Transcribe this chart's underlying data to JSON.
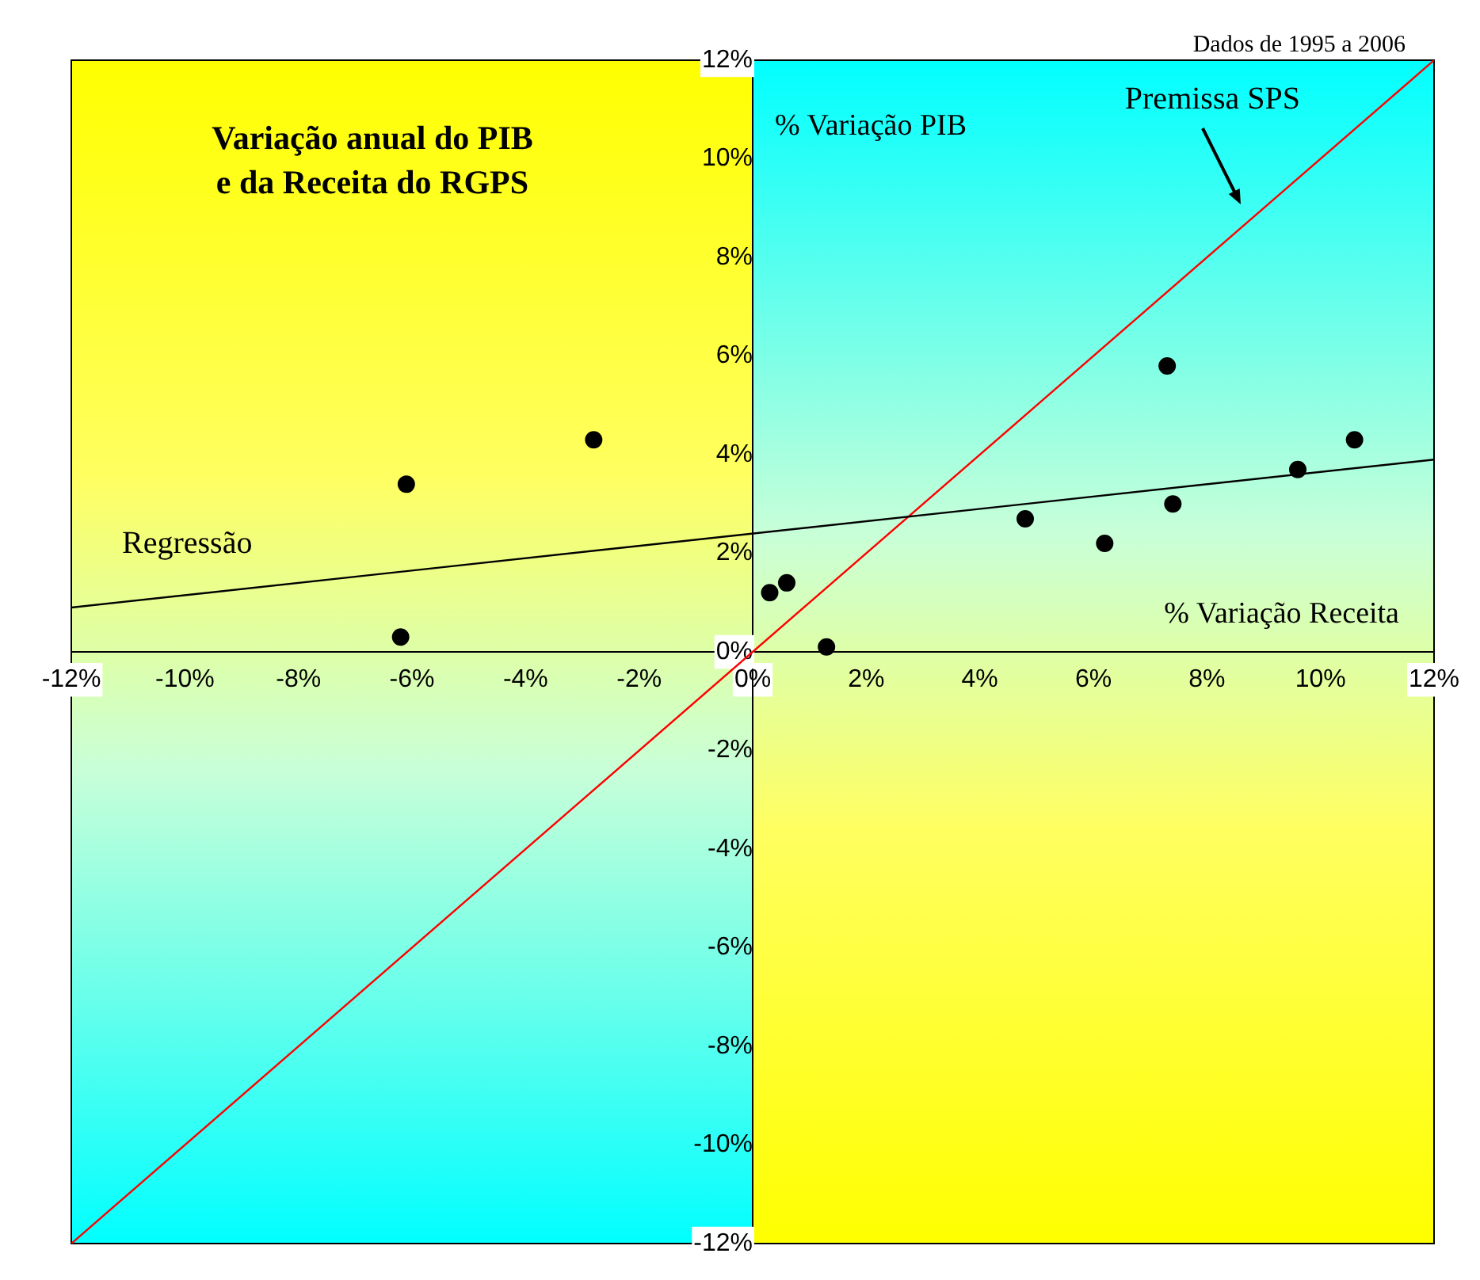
{
  "chart_data": {
    "type": "scatter",
    "title": "Variação anual do PIB\ne da Receita do RGPS",
    "xlabel": "% Variação Receita",
    "ylabel": "% Variação PIB",
    "annotations": [
      "Dados de 1995 a 2006"
    ],
    "xlim": [
      -12,
      12
    ],
    "ylim": [
      -12,
      12
    ],
    "xticks": [
      {
        "value": -12,
        "label": "-12%"
      },
      {
        "value": -10,
        "label": "-10%"
      },
      {
        "value": -8,
        "label": "-8%"
      },
      {
        "value": -6,
        "label": "-6%"
      },
      {
        "value": -4,
        "label": "-4%"
      },
      {
        "value": -2,
        "label": "-2%"
      },
      {
        "value": 0,
        "label": "0%"
      },
      {
        "value": 2,
        "label": "2%"
      },
      {
        "value": 4,
        "label": "4%"
      },
      {
        "value": 6,
        "label": "6%"
      },
      {
        "value": 8,
        "label": "8%"
      },
      {
        "value": 10,
        "label": "10%"
      },
      {
        "value": 12,
        "label": "12%"
      }
    ],
    "yticks": [
      {
        "value": -12,
        "label": "-12%"
      },
      {
        "value": -10,
        "label": "-10%"
      },
      {
        "value": -8,
        "label": "-8%"
      },
      {
        "value": -6,
        "label": "-6%"
      },
      {
        "value": -4,
        "label": "-4%"
      },
      {
        "value": -2,
        "label": "-2%"
      },
      {
        "value": 0,
        "label": "0%"
      },
      {
        "value": 2,
        "label": "2%"
      },
      {
        "value": 4,
        "label": "4%"
      },
      {
        "value": 6,
        "label": "6%"
      },
      {
        "value": 8,
        "label": "8%"
      },
      {
        "value": 10,
        "label": "10%"
      },
      {
        "value": 12,
        "label": "12%"
      }
    ],
    "grid": false,
    "legend": false,
    "series": [
      {
        "color": "#000000",
        "marker": "circle",
        "x": [
          -6.2,
          -6.1,
          -2.8,
          0.3,
          0.6,
          1.3,
          4.8,
          6.2,
          7.3,
          7.4,
          9.6,
          10.6
        ],
        "values": [
          0.3,
          3.4,
          4.3,
          1.2,
          1.4,
          0.1,
          2.7,
          2.2,
          5.8,
          3.0,
          3.7,
          4.3
        ]
      },
      {
        "type": "line",
        "name": "Regressão",
        "color": "#000000",
        "x": [
          -12,
          12
        ],
        "values": [
          0.9,
          3.9
        ]
      },
      {
        "type": "line",
        "name": "Premissa SPS",
        "color": "#ff0000",
        "x": [
          -12,
          12
        ],
        "values": [
          -12,
          12
        ]
      }
    ]
  }
}
